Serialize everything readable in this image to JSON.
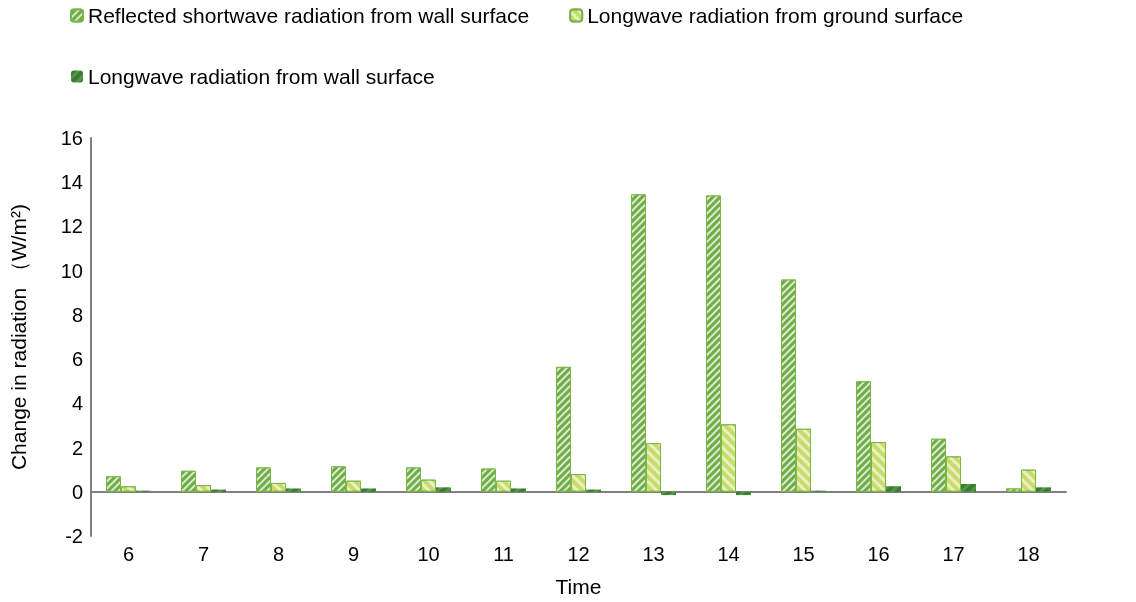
{
  "chart_data": {
    "type": "bar",
    "xlabel": "Time",
    "ylabel": "Change in radiation （W/m²)",
    "categories": [
      "6",
      "7",
      "8",
      "9",
      "10",
      "11",
      "12",
      "13",
      "14",
      "15",
      "16",
      "17",
      "18"
    ],
    "series": [
      {
        "name": "Reflected shortwave radiation from wall surface",
        "color": "#70ad47",
        "values": [
          0.7,
          0.95,
          1.1,
          1.15,
          1.1,
          1.05,
          5.65,
          13.45,
          13.4,
          9.6,
          5.0,
          2.4,
          0.15
        ]
      },
      {
        "name": "Longwave radiation from ground surface",
        "color": "#c9dc6a",
        "values": [
          0.25,
          0.3,
          0.4,
          0.5,
          0.55,
          0.5,
          0.8,
          2.2,
          3.05,
          2.85,
          2.25,
          1.6,
          1.0
        ]
      },
      {
        "name": "Longwave radiation from wall surface",
        "color": "#4e9a3e",
        "values": [
          0.05,
          0.1,
          0.15,
          0.15,
          0.2,
          0.15,
          0.1,
          -0.15,
          -0.15,
          0.05,
          0.25,
          0.35,
          0.2
        ]
      }
    ],
    "ylim": [
      -2,
      16
    ],
    "yticks": [
      -2,
      0,
      2,
      4,
      6,
      8,
      10,
      12,
      14,
      16
    ],
    "grid": false,
    "legend": "top left"
  }
}
